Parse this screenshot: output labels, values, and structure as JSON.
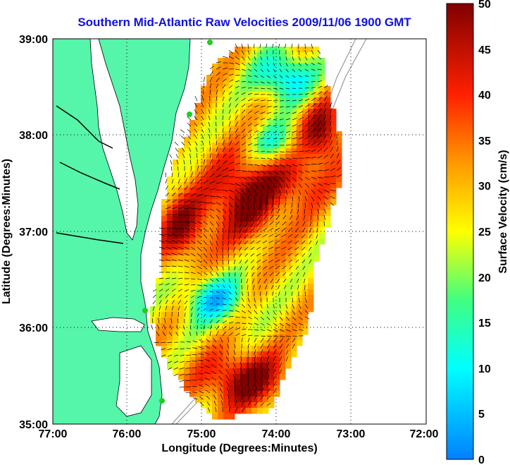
{
  "title": "Southern Mid-Atlantic Raw Velocities 2009/11/06 1900 GMT",
  "x_axis": {
    "label": "Longitude (Degrees:Minutes)",
    "ticks": [
      "77:00",
      "76:00",
      "75:00",
      "74:00",
      "73:00",
      "72:00"
    ]
  },
  "y_axis": {
    "label": "Latitude (Degrees:Minutes)",
    "ticks": [
      "39:00",
      "38:00",
      "37:00",
      "36:00",
      "35:00"
    ]
  },
  "colorbar": {
    "label": "Surface Velocity (cm/s)",
    "ticks": [
      "50",
      "45",
      "40",
      "35",
      "30",
      "25",
      "20",
      "15",
      "10",
      "5",
      "0"
    ],
    "min": 0,
    "max": 50
  },
  "map": {
    "lon_range": [
      -77,
      -72
    ],
    "lat_range": [
      35,
      39
    ],
    "grid": true,
    "land_color": "#55f5aa",
    "water_color": "#ffffff",
    "station_color": "#22cc22"
  }
}
